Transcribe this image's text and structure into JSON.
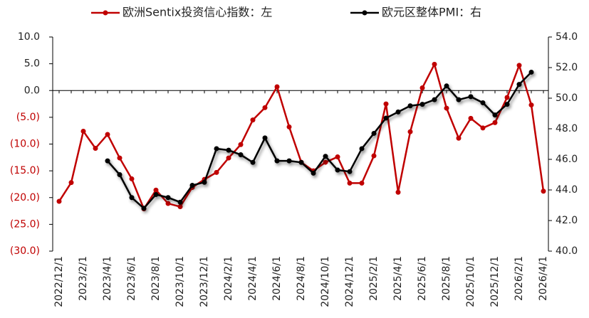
{
  "chart_data": {
    "type": "line",
    "categories": [
      "2022/12/1",
      null,
      "2023/2/1",
      null,
      "2023/4/1",
      null,
      "2023/6/1",
      null,
      "2023/8/1",
      null,
      "2023/10/1",
      null,
      "2023/12/1",
      null,
      "2024/2/1",
      null,
      "2024/4/1",
      null,
      "2024/6/1",
      null,
      "2024/8/1",
      null,
      "2024/10/1",
      null,
      "2024/12/1",
      null,
      "2025/2/1",
      null,
      "2025/4/1",
      null,
      "2025/6/1",
      null,
      "2025/8/1",
      null,
      "2025/10/1",
      null,
      "2025/12/1",
      null,
      "2026/2/1",
      null,
      "2026/4/1"
    ],
    "series": [
      {
        "name": "欧洲Sentix投资信心指数：左",
        "color": "#c00000",
        "axis": "y",
        "values": [
          -20.7,
          -17.2,
          -7.6,
          -10.8,
          -8.2,
          -12.6,
          -16.5,
          -22.1,
          -18.6,
          -21.1,
          -21.7,
          -18.1,
          -16.6,
          -15.3,
          -12.6,
          -10.1,
          -5.5,
          -3.2,
          0.7,
          -6.8,
          -13.4,
          -15.0,
          -13.4,
          -12.4,
          -17.3,
          -17.3,
          -12.2,
          -2.5,
          -19.0,
          -7.7,
          0.5,
          4.9,
          -3.3,
          -8.9,
          -5.2,
          -7.0,
          -6.0,
          -1.3,
          4.7,
          -2.7,
          -18.8
        ]
      },
      {
        "name": "欧元区整体PMI：右",
        "color": "#000000",
        "axis": "y2",
        "values": [
          null,
          null,
          null,
          null,
          45.9,
          45.0,
          43.5,
          42.8,
          43.7,
          43.5,
          43.2,
          44.3,
          44.5,
          46.7,
          46.6,
          46.3,
          45.8,
          47.4,
          45.9,
          45.9,
          45.8,
          45.1,
          46.2,
          45.3,
          45.2,
          46.7,
          47.7,
          48.7,
          49.1,
          49.5,
          49.6,
          49.9,
          50.8,
          49.9,
          50.1,
          49.7,
          48.9,
          49.6,
          50.9,
          51.7,
          null
        ]
      }
    ],
    "ylim": [
      -30,
      10
    ],
    "yticks": [
      {
        "value": -30,
        "label": "(30.0)"
      },
      {
        "value": -25,
        "label": "(25.0)"
      },
      {
        "value": -20,
        "label": "(20.0)"
      },
      {
        "value": -15,
        "label": "(15.0)"
      },
      {
        "value": -10,
        "label": "(10.0)"
      },
      {
        "value": -5,
        "label": "(5.0)"
      },
      {
        "value": 0,
        "label": "0.0"
      },
      {
        "value": 5,
        "label": "5.0"
      },
      {
        "value": 10,
        "label": "10.0"
      }
    ],
    "negative_label_color": "#c00000",
    "y2lim": [
      40,
      54
    ],
    "y2ticks": [
      {
        "value": 40,
        "label": "40.0"
      },
      {
        "value": 42,
        "label": "42.0"
      },
      {
        "value": 44,
        "label": "44.0"
      },
      {
        "value": 46,
        "label": "46.0"
      },
      {
        "value": 48,
        "label": "48.0"
      },
      {
        "value": 50,
        "label": "50.0"
      },
      {
        "value": 52,
        "label": "52.0"
      },
      {
        "value": 54,
        "label": "54.0"
      }
    ],
    "legend": "top"
  }
}
